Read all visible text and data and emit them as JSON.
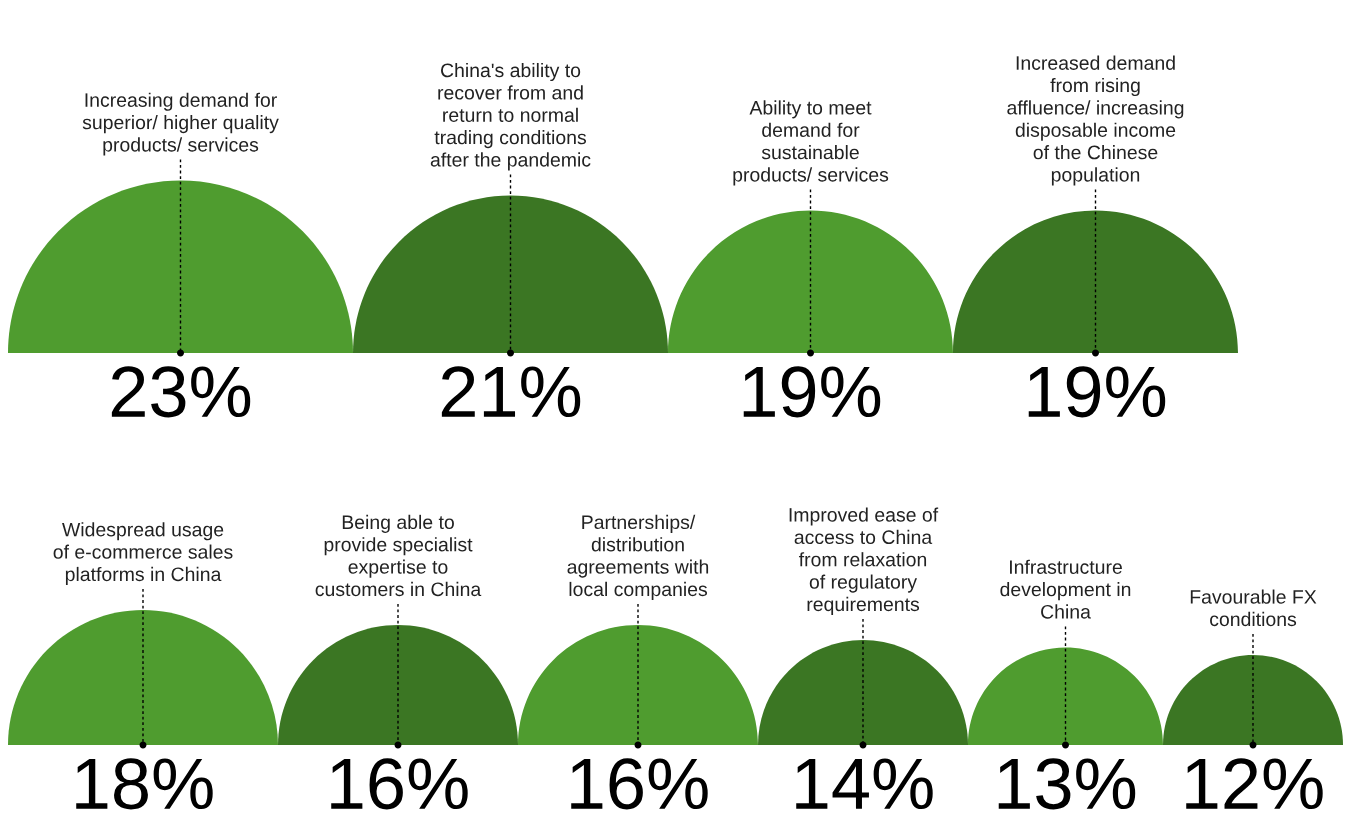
{
  "chart_data": [
    {
      "type": "other",
      "categories": [
        "Increasing demand for\nsuperior/ higher quality\nproducts/ services",
        "China's ability to\nrecover from and\nreturn to normal\ntrading conditions\nafter the pandemic",
        "Ability to meet\ndemand for\nsustainable\nproducts/ services",
        "Increased demand\nfrom rising\naffluence/ increasing\ndisposable income\nof the Chinese\npopulation"
      ],
      "values": [
        23,
        21,
        19,
        19
      ],
      "value_labels": [
        "23%",
        "21%",
        "19%",
        "19%"
      ],
      "colors": [
        "#4f9c2f",
        "#3b7623",
        "#4f9c2f",
        "#3b7623"
      ]
    },
    {
      "type": "other",
      "categories": [
        "Widespread usage\nof e-commerce sales\nplatforms in China",
        "Being able to\nprovide specialist\nexpertise to\ncustomers in China",
        "Partnerships/\ndistribution\nagreements with\nlocal companies",
        "Improved ease of\naccess to China\nfrom relaxation\nof regulatory\nrequirements",
        "Infrastructure\ndevelopment in\nChina",
        "Favourable FX\nconditions"
      ],
      "values": [
        18,
        16,
        16,
        14,
        13,
        12
      ],
      "value_labels": [
        "18%",
        "16%",
        "16%",
        "14%",
        "13%",
        "12%"
      ],
      "colors": [
        "#4f9c2f",
        "#3b7623",
        "#4f9c2f",
        "#3b7623",
        "#4f9c2f",
        "#3b7623"
      ]
    }
  ]
}
